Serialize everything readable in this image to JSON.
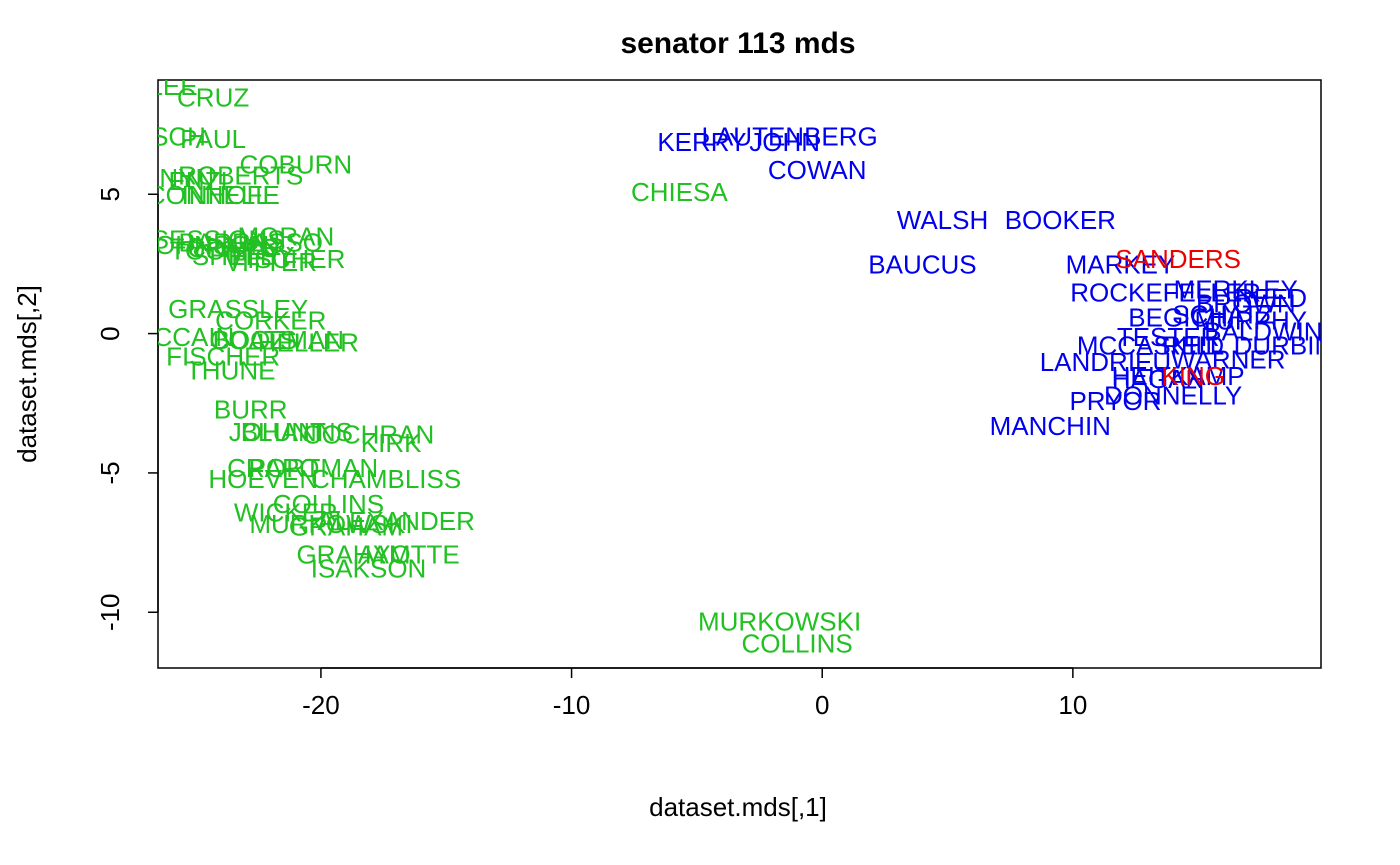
{
  "chart_data": {
    "type": "scatter",
    "title": "senator 113 mds",
    "xlabel": "dataset.mds[,1]",
    "ylabel": "dataset.mds[,2]",
    "xlim": [
      -26.5,
      19.9
    ],
    "ylim": [
      -12.0,
      9.1
    ],
    "x_ticks": [
      -20,
      -10,
      0,
      10
    ],
    "y_ticks": [
      -10,
      -5,
      0,
      5
    ],
    "grid": false,
    "legend": "none",
    "colors": {
      "R": "#22c022",
      "D": "#0000ee",
      "I": "#ee0000"
    },
    "points": [
      {
        "label": "LEE",
        "x": -25.9,
        "y": 8.8,
        "party": "R"
      },
      {
        "label": "CRUZ",
        "x": -24.3,
        "y": 8.4,
        "party": "R"
      },
      {
        "label": "RISCH",
        "x": -26.2,
        "y": 7.0,
        "party": "R"
      },
      {
        "label": "PAUL",
        "x": -24.3,
        "y": 6.9,
        "party": "R"
      },
      {
        "label": "COBURN",
        "x": -21.0,
        "y": 6.0,
        "party": "R"
      },
      {
        "label": "ROBERTS",
        "x": -23.2,
        "y": 5.6,
        "party": "R"
      },
      {
        "label": "CORNYN",
        "x": -26.5,
        "y": 5.5,
        "party": "R"
      },
      {
        "label": "ENZI",
        "x": -24.9,
        "y": 5.4,
        "party": "R"
      },
      {
        "label": "MCCONNELL",
        "x": -25.3,
        "y": 4.9,
        "party": "R"
      },
      {
        "label": "INHOFE",
        "x": -23.6,
        "y": 4.9,
        "party": "R"
      },
      {
        "label": "MORAN",
        "x": -21.4,
        "y": 3.4,
        "party": "R"
      },
      {
        "label": "SESSIONS",
        "x": -24.1,
        "y": 3.3,
        "party": "R"
      },
      {
        "label": "BARRASSO",
        "x": -22.8,
        "y": 3.2,
        "party": "R"
      },
      {
        "label": "JOHNSON",
        "x": -24.6,
        "y": 3.1,
        "party": "R"
      },
      {
        "label": "CRAPO",
        "x": -23.5,
        "y": 3.0,
        "party": "R"
      },
      {
        "label": "TOOMEY",
        "x": -23.8,
        "y": 2.9,
        "party": "R"
      },
      {
        "label": "SHELBY",
        "x": -23.1,
        "y": 2.7,
        "party": "R"
      },
      {
        "label": "FISCHER",
        "x": -21.3,
        "y": 2.6,
        "party": "R"
      },
      {
        "label": "VITTER",
        "x": -22.0,
        "y": 2.5,
        "party": "R"
      },
      {
        "label": "GRASSLEY",
        "x": -23.3,
        "y": 0.8,
        "party": "R"
      },
      {
        "label": "CORKER",
        "x": -22.0,
        "y": 0.4,
        "party": "R"
      },
      {
        "label": "MCCAIN",
        "x": -25.5,
        "y": -0.2,
        "party": "R"
      },
      {
        "label": "COATS",
        "x": -22.7,
        "y": -0.3,
        "party": "R"
      },
      {
        "label": "BOOZMAN",
        "x": -21.7,
        "y": -0.3,
        "party": "R"
      },
      {
        "label": "HELLER",
        "x": -20.5,
        "y": -0.4,
        "party": "R"
      },
      {
        "label": "FISCHER",
        "x": -23.9,
        "y": -0.9,
        "party": "R"
      },
      {
        "label": "THUNE",
        "x": -23.6,
        "y": -1.4,
        "party": "R"
      },
      {
        "label": "BURR",
        "x": -22.8,
        "y": -2.8,
        "party": "R"
      },
      {
        "label": "JOHANNS",
        "x": -21.2,
        "y": -3.6,
        "party": "R"
      },
      {
        "label": "BLUNT",
        "x": -21.5,
        "y": -3.6,
        "party": "R"
      },
      {
        "label": "COCHRAN",
        "x": -18.1,
        "y": -3.7,
        "party": "R"
      },
      {
        "label": "KIRK",
        "x": -17.2,
        "y": -4.0,
        "party": "R"
      },
      {
        "label": "CHAMBLISS",
        "x": -17.4,
        "y": -5.3,
        "party": "R"
      },
      {
        "label": "CRAPO",
        "x": -21.9,
        "y": -4.9,
        "party": "R"
      },
      {
        "label": "PORTMAN",
        "x": -20.3,
        "y": -4.9,
        "party": "R"
      },
      {
        "label": "HOEVEN",
        "x": -22.3,
        "y": -5.3,
        "party": "R"
      },
      {
        "label": "WICKER",
        "x": -21.4,
        "y": -6.5,
        "party": "R"
      },
      {
        "label": "COLLINS",
        "x": -19.7,
        "y": -6.2,
        "party": "R"
      },
      {
        "label": "ALEXANDER",
        "x": -17.0,
        "y": -6.8,
        "party": "R"
      },
      {
        "label": "MURKOWSKI",
        "x": -19.6,
        "y": -6.9,
        "party": "R"
      },
      {
        "label": "GRAHAM",
        "x": -19.0,
        "y": -7.0,
        "party": "R"
      },
      {
        "label": "AYOTTE",
        "x": -16.5,
        "y": -8.0,
        "party": "R"
      },
      {
        "label": "GRAHAM",
        "x": -18.7,
        "y": -8.0,
        "party": "R"
      },
      {
        "label": "ISAKSON",
        "x": -18.1,
        "y": -8.5,
        "party": "R"
      },
      {
        "label": "CHIESA",
        "x": -5.7,
        "y": 5.0,
        "party": "R"
      },
      {
        "label": "MURKOWSKI",
        "x": -1.7,
        "y": -10.4,
        "party": "R"
      },
      {
        "label": "COLLINS",
        "x": -1.0,
        "y": -11.2,
        "party": "R"
      },
      {
        "label": "LAUTENBERG",
        "x": -1.3,
        "y": 7.0,
        "party": "D"
      },
      {
        "label": "KERRY",
        "x": -4.8,
        "y": 6.8,
        "party": "D"
      },
      {
        "label": "JOHN",
        "x": -1.5,
        "y": 6.8,
        "party": "D"
      },
      {
        "label": "COWAN",
        "x": -0.2,
        "y": 5.8,
        "party": "D"
      },
      {
        "label": "WALSH",
        "x": 4.8,
        "y": 4.0,
        "party": "D"
      },
      {
        "label": "BOOKER",
        "x": 9.5,
        "y": 4.0,
        "party": "D"
      },
      {
        "label": "BAUCUS",
        "x": 4.0,
        "y": 2.4,
        "party": "D"
      },
      {
        "label": "MARKEY",
        "x": 11.9,
        "y": 2.4,
        "party": "D"
      },
      {
        "label": "ROCKEFELLER",
        "x": 13.7,
        "y": 1.4,
        "party": "D"
      },
      {
        "label": "BEGICH",
        "x": 14.2,
        "y": 0.5,
        "party": "D"
      },
      {
        "label": "MERKLEY",
        "x": 16.5,
        "y": 1.5,
        "party": "D"
      },
      {
        "label": "REED",
        "x": 17.9,
        "y": 1.2,
        "party": "D"
      },
      {
        "label": "BROWN",
        "x": 16.9,
        "y": 1.0,
        "party": "D"
      },
      {
        "label": "SCHATZ",
        "x": 16.0,
        "y": 0.6,
        "party": "D"
      },
      {
        "label": "MURPHY",
        "x": 17.1,
        "y": 0.4,
        "party": "D"
      },
      {
        "label": "BALDWIN",
        "x": 17.6,
        "y": 0.0,
        "party": "D"
      },
      {
        "label": "DURBIN",
        "x": 18.4,
        "y": -0.5,
        "party": "D"
      },
      {
        "label": "TESTER",
        "x": 13.8,
        "y": -0.2,
        "party": "D"
      },
      {
        "label": "REID",
        "x": 14.8,
        "y": -0.5,
        "party": "D"
      },
      {
        "label": "MCCASKILL",
        "x": 13.1,
        "y": -0.5,
        "party": "D"
      },
      {
        "label": "WARNER",
        "x": 16.2,
        "y": -1.0,
        "party": "D"
      },
      {
        "label": "LANDRIEU",
        "x": 11.3,
        "y": -1.1,
        "party": "D"
      },
      {
        "label": "HEITKAMP",
        "x": 14.2,
        "y": -1.6,
        "party": "D"
      },
      {
        "label": "HAGAN",
        "x": 13.4,
        "y": -1.7,
        "party": "D"
      },
      {
        "label": "PRYOR",
        "x": 11.7,
        "y": -2.5,
        "party": "D"
      },
      {
        "label": "DONNELLY",
        "x": 14.0,
        "y": -2.3,
        "party": "D"
      },
      {
        "label": "MANCHIN",
        "x": 9.1,
        "y": -3.4,
        "party": "D"
      },
      {
        "label": "SANDERS",
        "x": 14.2,
        "y": 2.6,
        "party": "I"
      },
      {
        "label": "KING",
        "x": 14.8,
        "y": -1.6,
        "party": "I"
      }
    ]
  }
}
